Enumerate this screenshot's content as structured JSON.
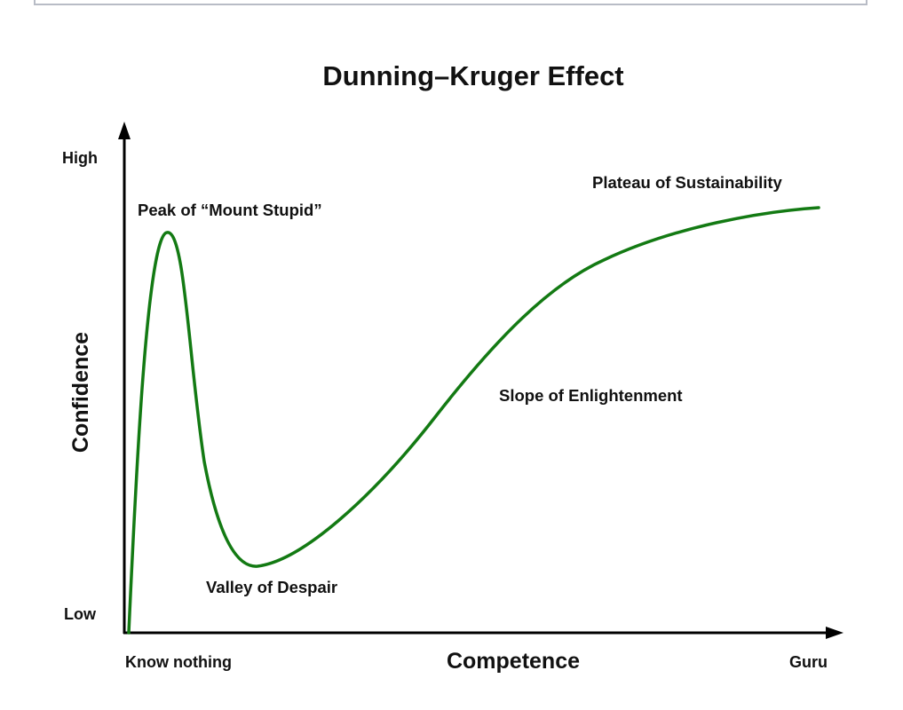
{
  "diagram": {
    "title": "Dunning–Kruger Effect",
    "y_axis_label": "Confidence",
    "x_axis_label": "Competence",
    "y_high_label": "High",
    "y_low_label": "Low",
    "x_low_label": "Know nothing",
    "x_high_label": "Guru",
    "annotations": {
      "peak": "Peak of “Mount Stupid”",
      "valley": "Valley of Despair",
      "slope": "Slope of Enlightenment",
      "plateau": "Plateau of Sustainability"
    },
    "curve_color": "#137a13",
    "axis_color": "#000000"
  }
}
